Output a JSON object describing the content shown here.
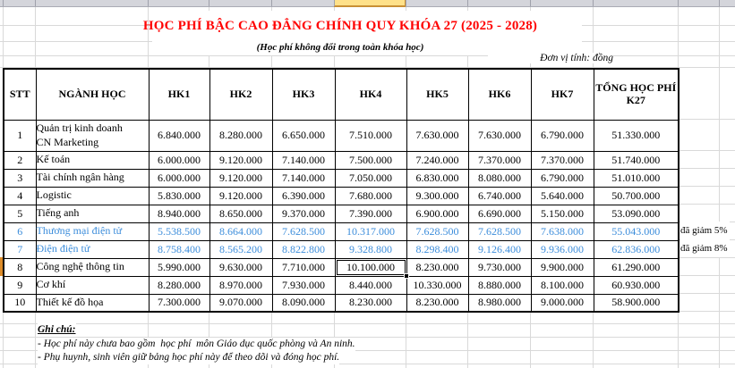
{
  "sheet": {
    "title": "HỌC PHÍ BẬC CAO ĐẲNG CHÍNH QUY KHÓA 27 (2025 - 2028)",
    "subtitle": "(Học phí không đổi trong toàn khóa học)",
    "unit_note": "Đơn vị tính: đồng",
    "colors": {
      "title_red": "#ff0000",
      "discount_row_blue": "#3c8ddb",
      "selected_column_header_fill": "#ffe189",
      "selected_column_header_border": "#c98f34",
      "selected_row_header_fill": "#dd8c29",
      "gridline": "#d9d9d9"
    }
  },
  "table": {
    "columns": [
      "STT",
      "NGÀNH HỌC",
      "HK1",
      "HK2",
      "HK3",
      "HK4",
      "HK5",
      "HK6",
      "HK7",
      "TỔNG HỌC PHÍ K27"
    ],
    "rows": [
      {
        "stt": "1",
        "nganh": "Quản trị kinh doanh\nCN Marketing",
        "values": [
          "6.840.000",
          "8.280.000",
          "6.650.000",
          "7.510.000",
          "7.630.000",
          "7.630.000",
          "6.790.000",
          "51.330.000"
        ],
        "highlight": false
      },
      {
        "stt": "2",
        "nganh": "Kế toán",
        "values": [
          "6.000.000",
          "9.120.000",
          "7.140.000",
          "7.500.000",
          "7.240.000",
          "7.370.000",
          "7.370.000",
          "51.740.000"
        ],
        "highlight": false
      },
      {
        "stt": "3",
        "nganh": "Tài chính ngân hàng",
        "values": [
          "6.000.000",
          "9.120.000",
          "7.140.000",
          "7.050.000",
          "6.830.000",
          "8.080.000",
          "6.790.000",
          "51.010.000"
        ],
        "highlight": false
      },
      {
        "stt": "4",
        "nganh": "Logistic",
        "values": [
          "5.830.000",
          "9.120.000",
          "6.390.000",
          "7.680.000",
          "9.300.000",
          "6.740.000",
          "5.640.000",
          "50.700.000"
        ],
        "highlight": false
      },
      {
        "stt": "5",
        "nganh": "Tiếng anh",
        "values": [
          "8.940.000",
          "8.650.000",
          "9.370.000",
          "7.390.000",
          "6.900.000",
          "6.690.000",
          "5.150.000",
          "53.090.000"
        ],
        "highlight": false
      },
      {
        "stt": "6",
        "nganh": "Thương mại điện tử",
        "values": [
          "5.538.500",
          "8.664.000",
          "7.628.500",
          "10.317.000",
          "7.628.500",
          "7.628.500",
          "7.638.000",
          "55.043.000"
        ],
        "highlight": true
      },
      {
        "stt": "7",
        "nganh": "Điện điện tử",
        "values": [
          "8.758.400",
          "8.565.200",
          "8.822.800",
          "9.328.800",
          "8.298.400",
          "9.126.400",
          "9.936.000",
          "62.836.000"
        ],
        "highlight": true
      },
      {
        "stt": "8",
        "nganh": "Công nghệ thông tin",
        "values": [
          "5.990.000",
          "9.630.000",
          "7.710.000",
          "10.100.000",
          "8.230.000",
          "9.730.000",
          "9.900.000",
          "61.290.000"
        ],
        "highlight": false
      },
      {
        "stt": "9",
        "nganh": "Cơ khí",
        "values": [
          "8.280.000",
          "8.970.000",
          "7.930.000",
          "8.440.000",
          "10.330.000",
          "8.880.000",
          "8.100.000",
          "60.930.000"
        ],
        "highlight": false
      },
      {
        "stt": "10",
        "nganh": "Thiết kế đồ họa",
        "values": [
          "7.300.000",
          "9.070.000",
          "8.090.000",
          "8.230.000",
          "8.230.000",
          "8.980.000",
          "9.000.000",
          "58.900.000"
        ],
        "highlight": false
      }
    ],
    "selected_cell": {
      "row_stt": "8",
      "column": "HK4",
      "value": "10.100.000"
    }
  },
  "annotations": [
    {
      "text": "đã giảm 5%",
      "row_stt": "6"
    },
    {
      "text": "đã giảm 8%",
      "row_stt": "7"
    }
  ],
  "notes": {
    "heading": "Ghi chú:",
    "lines": [
      "- Học phí này chưa bao gồm  học phí  môn Giáo dục quốc phòng và An ninh.",
      "- Phụ huynh, sinh viên giữ bảng học phí này để theo dõi và đóng học phí."
    ]
  }
}
